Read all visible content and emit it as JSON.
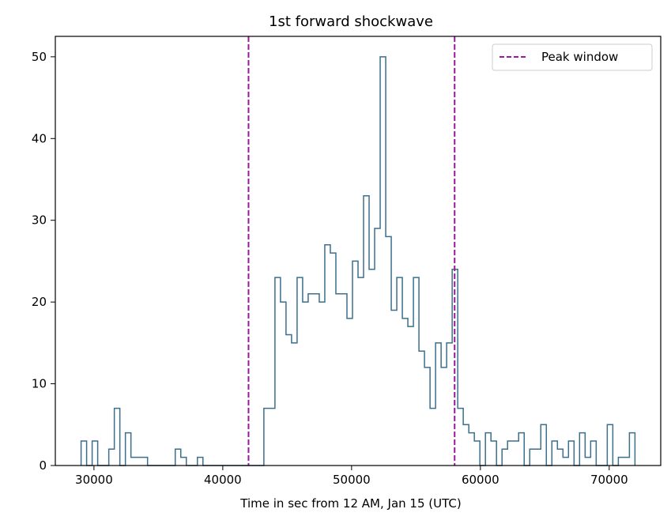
{
  "chart_data": {
    "type": "histogram",
    "title": "1st forward shockwave",
    "xlabel": "Time in sec from 12 AM, Jan 15 (UTC)",
    "ylabel": "",
    "xlim": [
      27000,
      74000
    ],
    "ylim": [
      0,
      52.5
    ],
    "x_ticks": [
      30000,
      40000,
      50000,
      60000,
      70000
    ],
    "y_ticks": [
      0,
      10,
      20,
      30,
      40,
      50
    ],
    "bin_start": 29000,
    "bin_width": 430,
    "counts": [
      3,
      0,
      3,
      0,
      0,
      2,
      7,
      0,
      4,
      1,
      1,
      1,
      0,
      0,
      0,
      0,
      0,
      2,
      1,
      0,
      0,
      1,
      0,
      0,
      0,
      0,
      0,
      0,
      0,
      0,
      0,
      0,
      0,
      7,
      7,
      23,
      20,
      16,
      15,
      23,
      20,
      21,
      21,
      20,
      27,
      26,
      21,
      21,
      18,
      25,
      23,
      33,
      24,
      29,
      50,
      28,
      19,
      23,
      18,
      17,
      23,
      14,
      12,
      7,
      15,
      12,
      15,
      24,
      7,
      5,
      4,
      3,
      0,
      4,
      3,
      0,
      2,
      3,
      3,
      4,
      0,
      2,
      2,
      5,
      0,
      3,
      2,
      1,
      3,
      0,
      4,
      1,
      3,
      0,
      0,
      5,
      0,
      1,
      1,
      4
    ],
    "hist_color": "#3b6f8c",
    "vlines": [
      {
        "x": 42000,
        "color": "#9b179e",
        "style": "dashed"
      },
      {
        "x": 58000,
        "color": "#9b179e",
        "style": "dashed"
      }
    ],
    "legend": {
      "placement": "top-right",
      "entries": [
        {
          "label": "Peak window",
          "color": "#9b179e",
          "style": "dashed"
        }
      ]
    }
  }
}
